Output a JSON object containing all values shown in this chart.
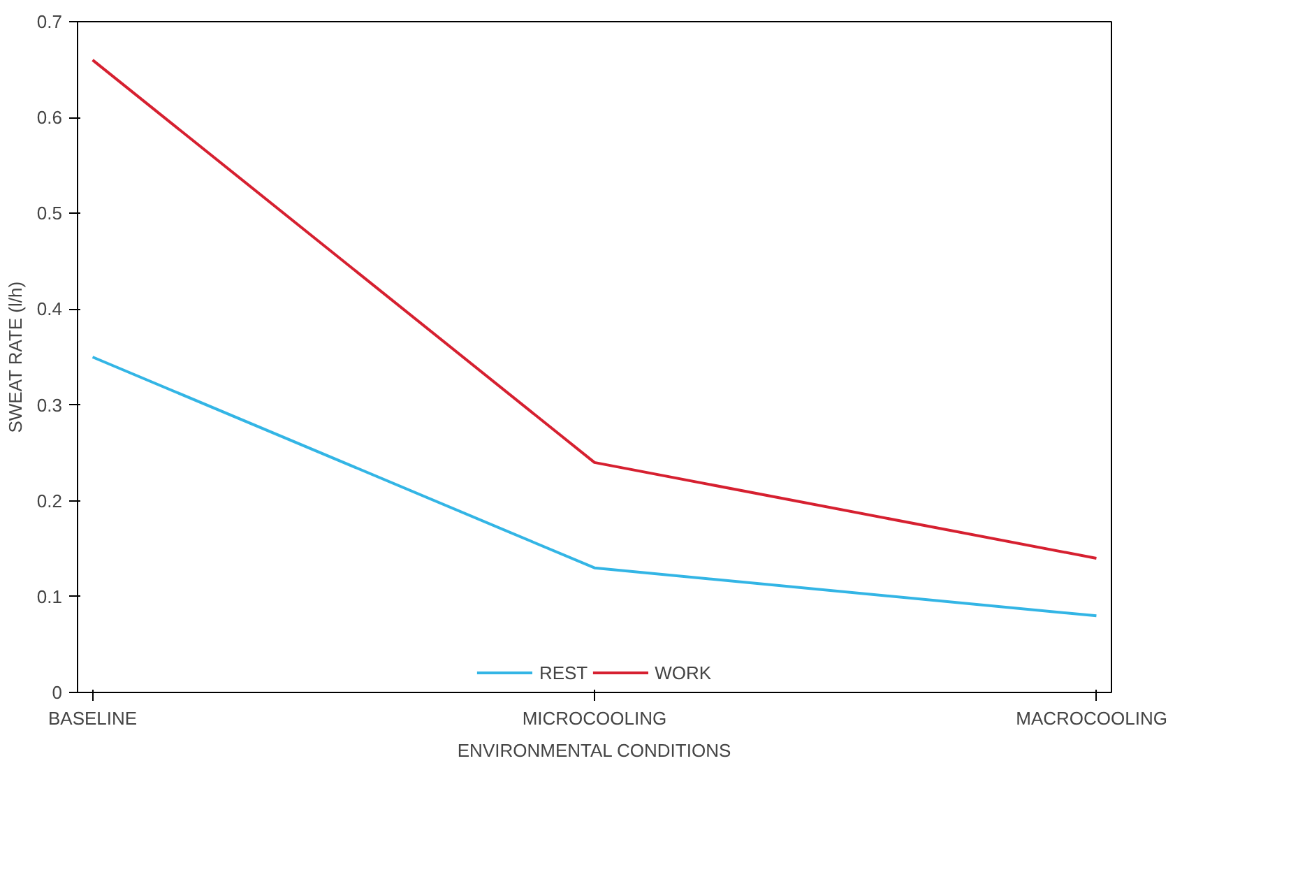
{
  "chart_data": {
    "type": "line",
    "xlabel": "ENVIRONMENTAL CONDITIONS",
    "ylabel": "SWEAT RATE (l/h)",
    "categories": [
      "BASELINE",
      "MICROCOOLING",
      "MACROCOOLING"
    ],
    "series": [
      {
        "name": "REST",
        "color": "#33b5e5",
        "values": [
          0.35,
          0.13,
          0.08
        ]
      },
      {
        "name": "WORK",
        "color": "#d62030",
        "values": [
          0.66,
          0.24,
          0.14
        ]
      }
    ],
    "ylim": [
      0,
      0.7
    ],
    "yticks": [
      0,
      0.1,
      0.2,
      0.3,
      0.4,
      0.5,
      0.6,
      0.7
    ],
    "grid": false,
    "legend": "bottom",
    "marker": "none",
    "line_style": "solid"
  }
}
